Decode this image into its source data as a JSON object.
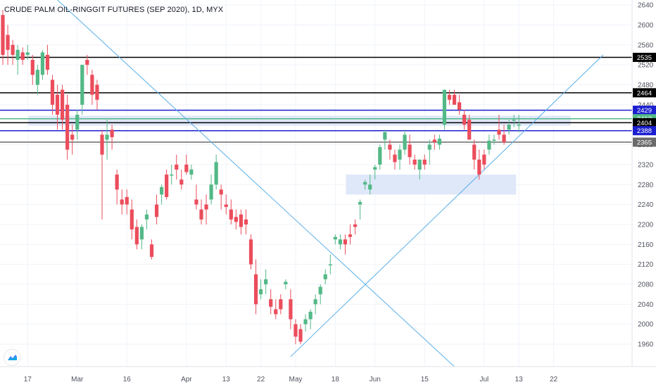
{
  "title": "CRUDE PALM OIL-RINGGIT FUTURES (SEP 2020), 1D, MYX",
  "colors": {
    "up": "#53b987",
    "down": "#eb4d5c",
    "trend": "#5aaee9",
    "zone": "#dbe6f8",
    "black_level": "#000000",
    "blue_level": "#1c1fcf",
    "grey_level": "#6b6b6b"
  },
  "chart_data": {
    "type": "candlestick",
    "ylim": [
      1915,
      2650
    ],
    "y_ticks": [
      1960,
      2000,
      2040,
      2080,
      2120,
      2160,
      2200,
      2240,
      2280,
      2320,
      2360,
      2400,
      2440,
      2480,
      2520,
      2560,
      2600,
      2640
    ],
    "x_tick_labels": [
      {
        "label": "17",
        "idx": 5
      },
      {
        "label": "Mar",
        "idx": 15
      },
      {
        "label": "16",
        "idx": 25
      },
      {
        "label": "Apr",
        "idx": 37
      },
      {
        "label": "13",
        "idx": 45
      },
      {
        "label": "22",
        "idx": 52
      },
      {
        "label": "May",
        "idx": 59
      },
      {
        "label": "18",
        "idx": 67
      },
      {
        "label": "Jun",
        "idx": 75
      },
      {
        "label": "15",
        "idx": 85
      },
      {
        "label": "Jul",
        "idx": 97
      },
      {
        "label": "13",
        "idx": 104
      },
      {
        "label": "22",
        "idx": 111
      }
    ],
    "candles": [
      [
        2620,
        2630,
        2520,
        2540
      ],
      [
        2580,
        2600,
        2520,
        2550
      ],
      [
        2560,
        2570,
        2520,
        2540
      ],
      [
        2530,
        2560,
        2500,
        2550
      ],
      [
        2545,
        2555,
        2520,
        2530
      ],
      [
        2540,
        2560,
        2530,
        2545
      ],
      [
        2530,
        2540,
        2480,
        2500
      ],
      [
        2480,
        2520,
        2460,
        2510
      ],
      [
        2500,
        2550,
        2490,
        2545
      ],
      [
        2540,
        2560,
        2500,
        2510
      ],
      [
        2490,
        2500,
        2420,
        2440
      ],
      [
        2460,
        2480,
        2390,
        2420
      ],
      [
        2470,
        2480,
        2390,
        2410
      ],
      [
        2440,
        2460,
        2330,
        2350
      ],
      [
        2380,
        2400,
        2340,
        2370
      ],
      [
        2390,
        2430,
        2370,
        2420
      ],
      [
        2440,
        2520,
        2420,
        2520
      ],
      [
        2530,
        2540,
        2500,
        2520
      ],
      [
        2500,
        2510,
        2440,
        2460
      ],
      [
        2480,
        2490,
        2430,
        2450
      ],
      [
        2380,
        2390,
        2210,
        2340
      ],
      [
        2370,
        2410,
        2330,
        2380
      ],
      [
        2390,
        2400,
        2350,
        2375
      ],
      [
        2300,
        2310,
        2240,
        2270
      ],
      [
        2250,
        2270,
        2220,
        2240
      ],
      [
        2255,
        2270,
        2220,
        2240
      ],
      [
        2230,
        2250,
        2170,
        2190
      ],
      [
        2195,
        2210,
        2150,
        2160
      ],
      [
        2170,
        2200,
        2150,
        2195
      ],
      [
        2210,
        2230,
        2190,
        2220
      ],
      [
        2160,
        2170,
        2130,
        2135
      ],
      [
        2240,
        2260,
        2200,
        2215
      ],
      [
        2260,
        2280,
        2240,
        2275
      ],
      [
        2300,
        2310,
        2250,
        2255
      ],
      [
        2300,
        2320,
        2280,
        2300
      ],
      [
        2320,
        2340,
        2290,
        2310
      ],
      [
        2290,
        2310,
        2270,
        2280
      ],
      [
        2320,
        2340,
        2300,
        2305
      ],
      [
        2300,
        2320,
        2290,
        2310
      ],
      [
        2250,
        2280,
        2230,
        2240
      ],
      [
        2230,
        2250,
        2200,
        2210
      ],
      [
        2240,
        2260,
        2200,
        2230
      ],
      [
        2250,
        2300,
        2240,
        2280
      ],
      [
        2280,
        2340,
        2270,
        2325
      ],
      [
        2270,
        2280,
        2230,
        2260
      ],
      [
        2240,
        2260,
        2220,
        2235
      ],
      [
        2230,
        2250,
        2200,
        2210
      ],
      [
        2215,
        2230,
        2190,
        2205
      ],
      [
        2220,
        2230,
        2180,
        2195
      ],
      [
        2210,
        2230,
        2180,
        2200
      ],
      [
        2170,
        2180,
        2110,
        2120
      ],
      [
        2100,
        2130,
        2020,
        2040
      ],
      [
        2060,
        2090,
        2050,
        2070
      ],
      [
        2080,
        2110,
        2060,
        2090
      ],
      [
        2050,
        2070,
        2020,
        2035
      ],
      [
        2030,
        2050,
        2010,
        2020
      ],
      [
        2050,
        2060,
        2020,
        2030
      ],
      [
        2080,
        2090,
        2070,
        2085
      ],
      [
        2050,
        2070,
        1990,
        2010
      ],
      [
        2000,
        2010,
        1960,
        1975
      ],
      [
        1990,
        2000,
        1960,
        1965
      ],
      [
        2000,
        2020,
        1985,
        2010
      ],
      [
        2010,
        2030,
        1990,
        2025
      ],
      [
        2040,
        2060,
        2020,
        2050
      ],
      [
        2060,
        2080,
        2040,
        2075
      ],
      [
        2090,
        2110,
        2080,
        2100
      ],
      [
        2120,
        2140,
        2100,
        2120
      ],
      [
        2170,
        2180,
        2160,
        2175
      ],
      [
        2160,
        2180,
        2150,
        2170
      ],
      [
        2170,
        2180,
        2140,
        2160
      ],
      [
        2180,
        2200,
        2160,
        2175
      ],
      [
        2200,
        2210,
        2180,
        2195
      ],
      [
        2240,
        2250,
        2210,
        2245
      ],
      [
        2280,
        2290,
        2270,
        2285
      ],
      [
        2270,
        2300,
        2260,
        2280
      ],
      [
        2310,
        2320,
        2290,
        2315
      ],
      [
        2320,
        2360,
        2310,
        2355
      ],
      [
        2370,
        2390,
        2350,
        2385
      ],
      [
        2360,
        2370,
        2330,
        2350
      ],
      [
        2340,
        2350,
        2310,
        2325
      ],
      [
        2330,
        2360,
        2310,
        2350
      ],
      [
        2350,
        2390,
        2340,
        2380
      ],
      [
        2360,
        2380,
        2320,
        2335
      ],
      [
        2330,
        2340,
        2310,
        2320
      ],
      [
        2310,
        2330,
        2290,
        2330
      ],
      [
        2330,
        2340,
        2310,
        2320
      ],
      [
        2350,
        2370,
        2320,
        2360
      ],
      [
        2370,
        2380,
        2350,
        2365
      ],
      [
        2360,
        2380,
        2350,
        2372
      ],
      [
        2400,
        2470,
        2390,
        2470
      ],
      [
        2460,
        2470,
        2440,
        2450
      ],
      [
        2460,
        2470,
        2440,
        2440
      ],
      [
        2445,
        2460,
        2420,
        2430
      ],
      [
        2420,
        2430,
        2390,
        2400
      ],
      [
        2410,
        2420,
        2370,
        2370
      ],
      [
        2360,
        2370,
        2310,
        2330
      ],
      [
        2330,
        2350,
        2290,
        2300
      ],
      [
        2340,
        2350,
        2310,
        2320
      ],
      [
        2350,
        2380,
        2340,
        2368
      ],
      [
        2370,
        2380,
        2360,
        2370
      ],
      [
        2390,
        2420,
        2370,
        2380
      ],
      [
        2380,
        2400,
        2360,
        2365
      ],
      [
        2390,
        2410,
        2380,
        2400
      ],
      [
        2410,
        2420,
        2395,
        2410
      ],
      [
        2400,
        2420,
        2385,
        2400
      ]
    ],
    "levels": [
      {
        "value": 2535,
        "label": "2535",
        "color": "#000000"
      },
      {
        "value": 2464,
        "label": "2464",
        "color": "#000000"
      },
      {
        "value": 2429,
        "label": "2429",
        "color": "#1c1fcf"
      },
      {
        "value": 2412,
        "label": "2412",
        "color": "#53b987"
      },
      {
        "value": 2404,
        "label": "2404",
        "color": "#000000"
      },
      {
        "value": 2388,
        "label": "2388",
        "color": "#1c1fcf"
      },
      {
        "value": 2365,
        "label": "2365",
        "color": "#6b6b6b"
      }
    ],
    "zones": [
      {
        "x_start_idx": 4,
        "x_end_idx": 115,
        "y_low": 2398,
        "y_high": 2418
      },
      {
        "x_start_idx": 68,
        "x_end_idx": 104,
        "y_low": 2260,
        "y_high": 2300
      }
    ],
    "trendlines": [
      {
        "x0_idx": 11,
        "y0": 2650,
        "x1_idx": 91,
        "y1": 1915
      },
      {
        "x0_idx": 58,
        "y0": 1935,
        "x1_idx": 121,
        "y1": 2540
      }
    ]
  }
}
